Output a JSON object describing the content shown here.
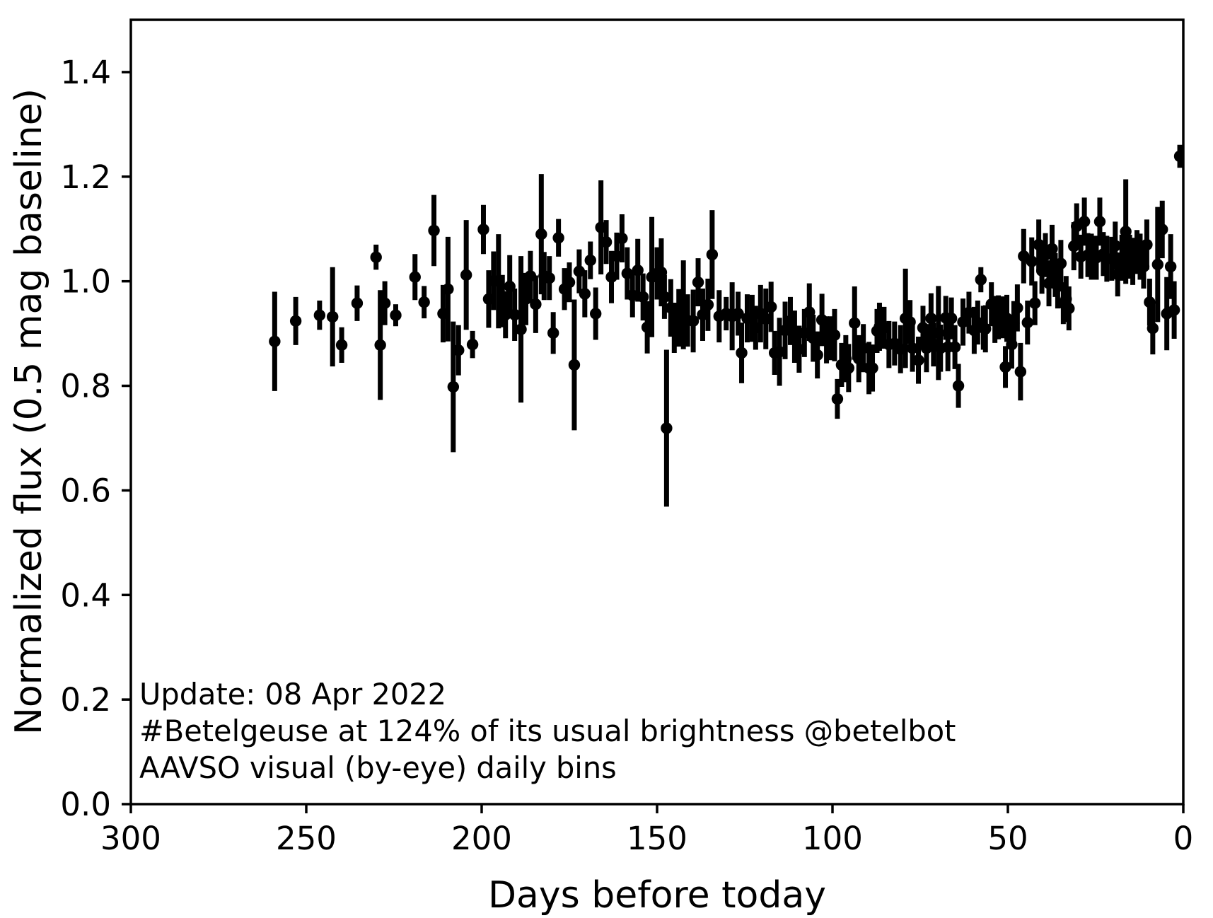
{
  "figure": {
    "background": "#ffffff",
    "foreground": "#000000"
  },
  "chart_data": {
    "type": "scatter",
    "series_name": "AAVSO visual (by-eye) daily bins",
    "xlabel": "Days before today",
    "ylabel": "Normalized flux (0.5 mag baseline)",
    "xlim": [
      300,
      0
    ],
    "ylim": [
      0,
      1.5
    ],
    "x_axis_inverted": true,
    "grid": false,
    "legend": "none",
    "marker": {
      "shape": "circle",
      "color": "#000000",
      "error_bars": true
    },
    "x_ticks": [
      {
        "value": 300,
        "label": "300"
      },
      {
        "value": 250,
        "label": "250"
      },
      {
        "value": 200,
        "label": "200"
      },
      {
        "value": 150,
        "label": "150"
      },
      {
        "value": 100,
        "label": "100"
      },
      {
        "value": 50,
        "label": "50"
      },
      {
        "value": 0,
        "label": "0"
      }
    ],
    "y_ticks": [
      {
        "value": 0.0,
        "label": "0.0"
      },
      {
        "value": 0.2,
        "label": "0.2"
      },
      {
        "value": 0.4,
        "label": "0.4"
      },
      {
        "value": 0.6,
        "label": "0.6"
      },
      {
        "value": 0.8,
        "label": "0.8"
      },
      {
        "value": 1.0,
        "label": "1.0"
      },
      {
        "value": 1.2,
        "label": "1.2"
      },
      {
        "value": 1.4,
        "label": "1.4"
      }
    ],
    "annotations": [
      "Update: 08 Apr 2022",
      "#Betelgeuse at 124% of its usual brightness @betelbot",
      "AAVSO visual (by-eye) daily bins"
    ],
    "points": [
      [
        259.0,
        0.885,
        0.095
      ],
      [
        253.0,
        0.924,
        0.046
      ],
      [
        246.2,
        0.935,
        0.028
      ],
      [
        242.5,
        0.932,
        0.095
      ],
      [
        239.9,
        0.878,
        0.034
      ],
      [
        235.5,
        0.958,
        0.034
      ],
      [
        230.1,
        1.046,
        0.024
      ],
      [
        228.9,
        0.878,
        0.105
      ],
      [
        227.6,
        0.958,
        0.042
      ],
      [
        224.5,
        0.935,
        0.021
      ],
      [
        219.0,
        1.008,
        0.044
      ],
      [
        216.4,
        0.96,
        0.031
      ],
      [
        213.6,
        1.097,
        0.068
      ],
      [
        211.0,
        0.938,
        0.055
      ],
      [
        209.6,
        0.985,
        0.1
      ],
      [
        208.1,
        0.798,
        0.125
      ],
      [
        206.6,
        0.868,
        0.048
      ],
      [
        204.4,
        1.012,
        0.105
      ],
      [
        202.6,
        0.879,
        0.026
      ],
      [
        199.5,
        1.099,
        0.047
      ],
      [
        198.0,
        0.966,
        0.055
      ],
      [
        196.6,
        1.001,
        0.056
      ],
      [
        195.2,
        1.0,
        0.09
      ],
      [
        194.1,
        0.962,
        0.05
      ],
      [
        193.2,
        0.936,
        0.045
      ],
      [
        192.0,
        0.99,
        0.06
      ],
      [
        190.6,
        0.936,
        0.05
      ],
      [
        188.8,
        0.908,
        0.14
      ],
      [
        187.4,
        0.966,
        0.05
      ],
      [
        186.1,
        1.01,
        0.048
      ],
      [
        184.6,
        0.956,
        0.055
      ],
      [
        183.0,
        1.09,
        0.115
      ],
      [
        182.2,
        1.01,
        0.046
      ],
      [
        180.7,
        1.006,
        0.042
      ],
      [
        179.6,
        0.901,
        0.04
      ],
      [
        178.1,
        1.083,
        0.036
      ],
      [
        176.4,
        0.985,
        0.04
      ],
      [
        175.0,
        0.998,
        0.038
      ],
      [
        173.6,
        0.84,
        0.125
      ],
      [
        172.2,
        1.019,
        0.042
      ],
      [
        170.6,
        0.976,
        0.045
      ],
      [
        169.0,
        1.04,
        0.036
      ],
      [
        167.5,
        0.938,
        0.05
      ],
      [
        166.0,
        1.103,
        0.09
      ],
      [
        164.5,
        1.075,
        0.042
      ],
      [
        163.0,
        1.008,
        0.05
      ],
      [
        161.5,
        1.048,
        0.045
      ],
      [
        160.0,
        1.082,
        0.046
      ],
      [
        158.5,
        1.015,
        0.05
      ],
      [
        157.0,
        0.973,
        0.042
      ],
      [
        155.5,
        1.021,
        0.06
      ],
      [
        154.0,
        0.97,
        0.045
      ],
      [
        152.8,
        0.912,
        0.05
      ],
      [
        151.5,
        1.008,
        0.115
      ],
      [
        150.0,
        1.015,
        0.05
      ],
      [
        148.8,
        1.017,
        0.065
      ],
      [
        147.9,
        0.97,
        0.042
      ],
      [
        147.3,
        0.719,
        0.15
      ],
      [
        146.1,
        0.949,
        0.055
      ],
      [
        145.1,
        0.911,
        0.048
      ],
      [
        143.8,
        0.93,
        0.055
      ],
      [
        142.5,
        0.955,
        0.085
      ],
      [
        141.3,
        0.925,
        0.05
      ],
      [
        139.7,
        0.924,
        0.06
      ],
      [
        138.3,
        0.998,
        0.046
      ],
      [
        137.0,
        0.936,
        0.05
      ],
      [
        135.5,
        0.955,
        0.05
      ],
      [
        134.3,
        1.051,
        0.085
      ],
      [
        132.3,
        0.933,
        0.05
      ],
      [
        130.3,
        0.938,
        0.032
      ],
      [
        128.6,
        0.933,
        0.065
      ],
      [
        126.9,
        0.938,
        0.042
      ],
      [
        125.9,
        0.863,
        0.058
      ],
      [
        124.3,
        0.929,
        0.046
      ],
      [
        122.9,
        0.929,
        0.045
      ],
      [
        121.9,
        0.911,
        0.042
      ],
      [
        120.5,
        0.938,
        0.055
      ],
      [
        119.0,
        0.928,
        0.058
      ],
      [
        117.5,
        0.951,
        0.048
      ],
      [
        116.5,
        0.863,
        0.042
      ],
      [
        115.1,
        0.865,
        0.065
      ],
      [
        113.5,
        0.906,
        0.055
      ],
      [
        112.0,
        0.924,
        0.046
      ],
      [
        110.8,
        0.894,
        0.05
      ],
      [
        109.5,
        0.87,
        0.045
      ],
      [
        108.0,
        0.901,
        0.046
      ],
      [
        106.6,
        0.941,
        0.055
      ],
      [
        105.5,
        0.891,
        0.045
      ],
      [
        104.3,
        0.859,
        0.045
      ],
      [
        103.0,
        0.926,
        0.05
      ],
      [
        101.7,
        0.888,
        0.045
      ],
      [
        100.5,
        0.891,
        0.042
      ],
      [
        99.4,
        0.897,
        0.05
      ],
      [
        98.6,
        0.775,
        0.038
      ],
      [
        97.4,
        0.84,
        0.042
      ],
      [
        96.2,
        0.852,
        0.045
      ],
      [
        95.4,
        0.834,
        0.046
      ],
      [
        93.7,
        0.92,
        0.07
      ],
      [
        92.5,
        0.852,
        0.045
      ],
      [
        91.2,
        0.872,
        0.046
      ],
      [
        89.6,
        0.834,
        0.05
      ],
      [
        88.6,
        0.834,
        0.045
      ],
      [
        87.3,
        0.905,
        0.042
      ],
      [
        86.6,
        0.913,
        0.046
      ],
      [
        85.3,
        0.911,
        0.04
      ],
      [
        83.9,
        0.879,
        0.045
      ],
      [
        82.3,
        0.881,
        0.042
      ],
      [
        80.6,
        0.87,
        0.046
      ],
      [
        79.2,
        0.929,
        0.095
      ],
      [
        77.9,
        0.922,
        0.042
      ],
      [
        77.2,
        0.872,
        0.045
      ],
      [
        75.5,
        0.849,
        0.045
      ],
      [
        74.2,
        0.911,
        0.042
      ],
      [
        73.2,
        0.872,
        0.046
      ],
      [
        71.9,
        0.929,
        0.048
      ],
      [
        71.2,
        0.879,
        0.042
      ],
      [
        69.8,
        0.901,
        0.09
      ],
      [
        69.2,
        0.872,
        0.045
      ],
      [
        67.7,
        0.93,
        0.042
      ],
      [
        67.1,
        0.874,
        0.046
      ],
      [
        66.1,
        0.929,
        0.04
      ],
      [
        65.1,
        0.874,
        0.042
      ],
      [
        64.1,
        0.8,
        0.042
      ],
      [
        62.8,
        0.922,
        0.045
      ],
      [
        61.1,
        0.94,
        0.04
      ],
      [
        59.6,
        0.906,
        0.045
      ],
      [
        58.6,
        0.921,
        0.042
      ],
      [
        57.7,
        1.003,
        0.024
      ],
      [
        57.0,
        0.911,
        0.042
      ],
      [
        56.4,
        0.909,
        0.045
      ],
      [
        54.7,
        0.956,
        0.042
      ],
      [
        53.7,
        0.927,
        0.045
      ],
      [
        52.7,
        0.931,
        0.042
      ],
      [
        51.6,
        0.931,
        0.04
      ],
      [
        50.7,
        0.836,
        0.04
      ],
      [
        50.3,
        0.929,
        0.045
      ],
      [
        48.9,
        0.879,
        0.046
      ],
      [
        48.3,
        0.92,
        0.042
      ],
      [
        47.3,
        0.949,
        0.045
      ],
      [
        46.4,
        0.827,
        0.055
      ],
      [
        45.5,
        1.048,
        0.052
      ],
      [
        44.4,
        0.921,
        0.042
      ],
      [
        43.2,
        1.038,
        0.046
      ],
      [
        42.3,
        0.958,
        0.042
      ],
      [
        41.2,
        1.07,
        0.048
      ],
      [
        40.3,
        1.02,
        0.044
      ],
      [
        39.3,
        1.05,
        0.042
      ],
      [
        38.3,
        0.996,
        0.044
      ],
      [
        37.4,
        1.062,
        0.046
      ],
      [
        36.5,
        1.012,
        0.042
      ],
      [
        35.8,
        0.99,
        0.042
      ],
      [
        34.9,
        1.034,
        0.045
      ],
      [
        34.2,
        0.958,
        0.04
      ],
      [
        33.4,
        0.966,
        0.044
      ],
      [
        32.6,
        0.948,
        0.042
      ],
      [
        31.2,
        1.067,
        0.046
      ],
      [
        30.4,
        1.105,
        0.044
      ],
      [
        29.2,
        1.047,
        0.042
      ],
      [
        28.2,
        1.114,
        0.046
      ],
      [
        27.2,
        1.05,
        0.042
      ],
      [
        26.2,
        1.047,
        0.044
      ],
      [
        24.8,
        1.045,
        0.042
      ],
      [
        23.8,
        1.114,
        0.046
      ],
      [
        22.8,
        1.052,
        0.042
      ],
      [
        21.8,
        1.043,
        0.044
      ],
      [
        20.4,
        1.043,
        0.042
      ],
      [
        19.4,
        1.068,
        0.046
      ],
      [
        18.7,
        1.013,
        0.042
      ],
      [
        17.5,
        1.045,
        0.044
      ],
      [
        16.4,
        1.095,
        0.1
      ],
      [
        15.3,
        1.047,
        0.042
      ],
      [
        14.4,
        1.038,
        0.045
      ],
      [
        13.2,
        1.056,
        0.042
      ],
      [
        12.3,
        1.047,
        0.044
      ],
      [
        11.3,
        1.028,
        0.042
      ],
      [
        10.4,
        1.07,
        0.048
      ],
      [
        9.6,
        0.96,
        0.045
      ],
      [
        8.7,
        0.91,
        0.05
      ],
      [
        7.3,
        1.032,
        0.11
      ],
      [
        6.0,
        1.099,
        0.055
      ],
      [
        4.7,
        0.938,
        0.07
      ],
      [
        3.6,
        1.028,
        0.062
      ],
      [
        2.6,
        0.945,
        0.055
      ],
      [
        1.0,
        1.239,
        0.022
      ]
    ]
  }
}
